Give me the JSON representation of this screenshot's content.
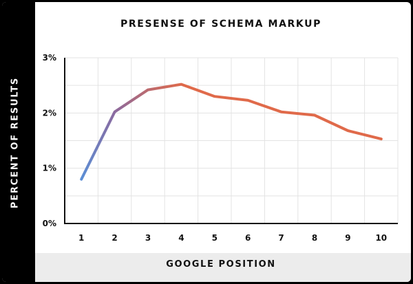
{
  "chart_data": {
    "type": "line",
    "title": "PRESENSE OF SCHEMA MARKUP",
    "xlabel": "GOOGLE POSITION",
    "ylabel": "PERCENT OF RESULTS",
    "x": [
      1,
      2,
      3,
      4,
      5,
      6,
      7,
      8,
      9,
      10
    ],
    "y": [
      0.8,
      2.02,
      2.42,
      2.52,
      2.3,
      2.23,
      2.02,
      1.96,
      1.68,
      1.53
    ],
    "xticks": [
      "1",
      "2",
      "3",
      "4",
      "5",
      "6",
      "7",
      "8",
      "9",
      "10"
    ],
    "yticks": [
      "0%",
      "1%",
      "2%",
      "3%"
    ],
    "ylim": [
      0,
      3
    ],
    "grid": true,
    "line_gradient": [
      "#5b8fd6",
      "#8a6aa0",
      "#e06a4a"
    ]
  }
}
